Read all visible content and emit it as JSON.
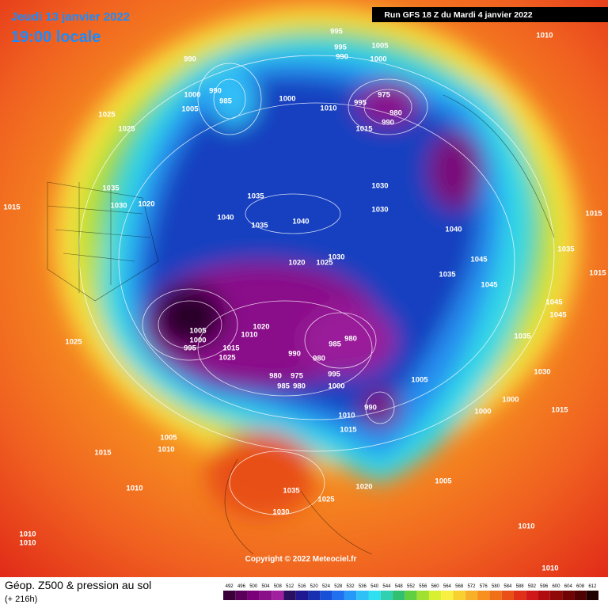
{
  "header": {
    "date": "Jeudi 13 janvier 2022",
    "time": "19:00 locale",
    "run": "Run GFS 18 Z du Mardi 4 janvier 2022"
  },
  "footer": {
    "title": "Géop. Z500 & pression au sol",
    "lead": "(+ 216h)",
    "copyright": "Copyright © 2022 Meteociel.fr"
  },
  "legend": {
    "levels": [
      492,
      496,
      500,
      504,
      508,
      512,
      516,
      520,
      524,
      528,
      532,
      536,
      540,
      544,
      548,
      552,
      556,
      560,
      564,
      568,
      572,
      576,
      580,
      584,
      588,
      592,
      596,
      600,
      604,
      608,
      612
    ],
    "colors": [
      "#3a003a",
      "#5a005a",
      "#7a007a",
      "#8a108a",
      "#a020a0",
      "#2a1060",
      "#201890",
      "#1830b0",
      "#1850d8",
      "#2070f0",
      "#2898f8",
      "#30c0f8",
      "#30e0f0",
      "#30d0b0",
      "#30c070",
      "#60d040",
      "#a0e030",
      "#d8f030",
      "#f8f040",
      "#f8d030",
      "#f8b028",
      "#f89020",
      "#f07018",
      "#e85018",
      "#e03018",
      "#d01818",
      "#b00c10",
      "#900808",
      "#700404",
      "#500202",
      "#200000"
    ]
  },
  "isobar_labels": [
    995,
    995,
    990,
    1005,
    1000,
    990,
    990,
    1000,
    985,
    1005,
    1000,
    1010,
    995,
    975,
    980,
    990,
    1015,
    1025,
    1025,
    1035,
    1030,
    1020,
    1015,
    1035,
    1040,
    1035,
    1040,
    1030,
    1030,
    1040,
    1045,
    1035,
    1030,
    1020,
    1025,
    1045,
    1015,
    1035,
    1045,
    1045,
    1015,
    1005,
    1000,
    995,
    1015,
    1025,
    1020,
    1010,
    990,
    985,
    980,
    980,
    980,
    975,
    985,
    980,
    995,
    1000,
    1005,
    1035,
    1030,
    1000,
    1000,
    1015,
    1010,
    1015,
    990,
    1025,
    1005,
    1010,
    1015,
    1010,
    1035,
    1025,
    1030,
    1020,
    1005,
    1010,
    1010,
    1010,
    1010,
    1010
  ]
}
